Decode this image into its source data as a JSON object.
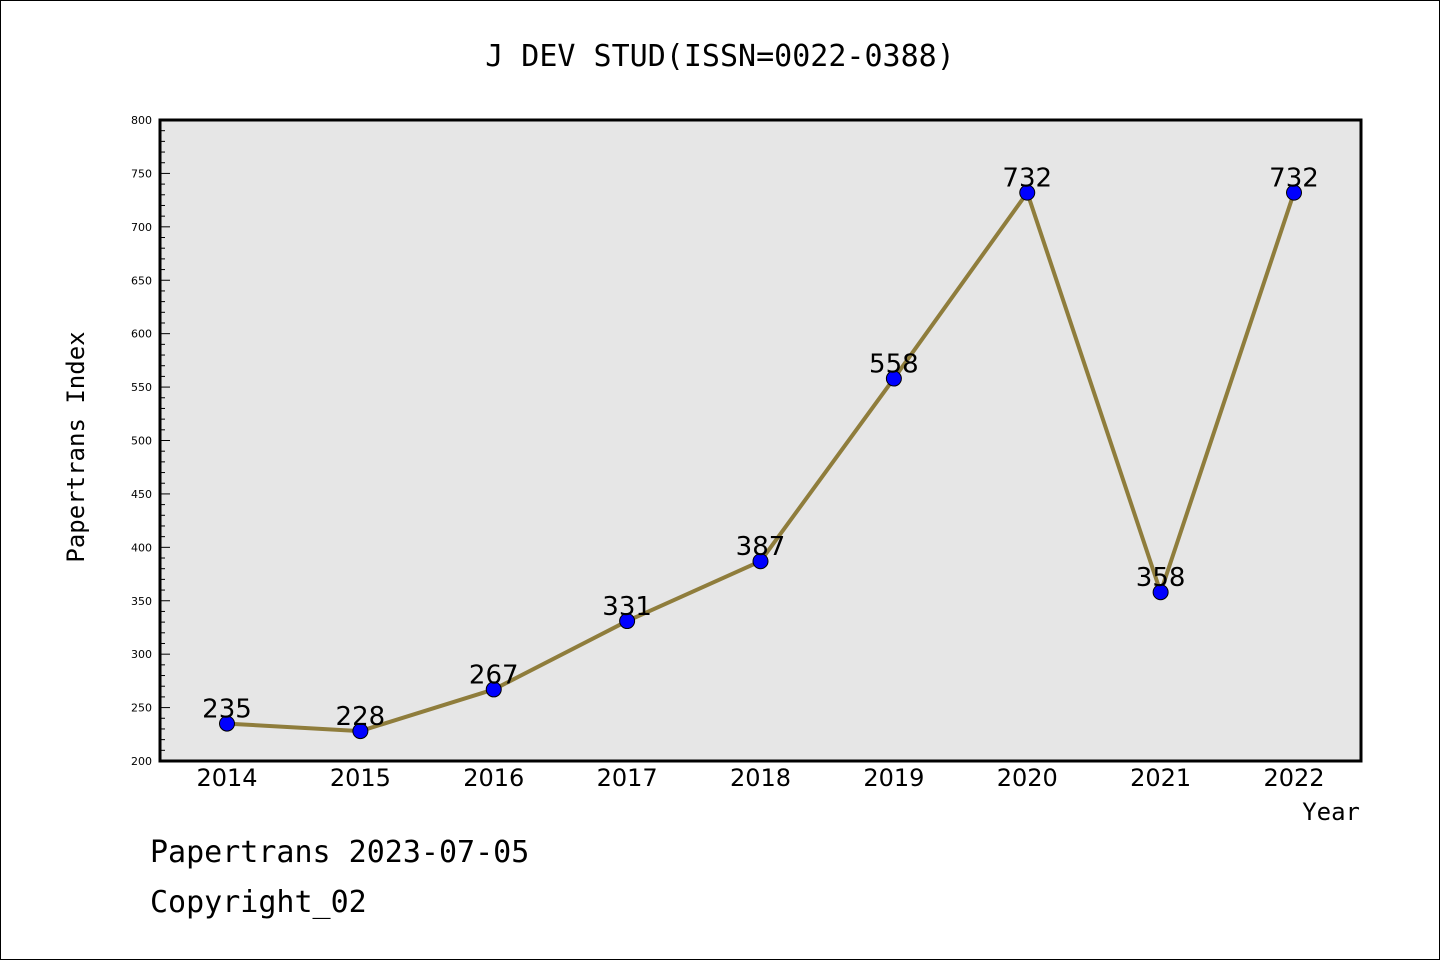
{
  "chart_data": {
    "type": "line",
    "title": "J DEV STUD(ISSN=0022-0388)",
    "xlabel": "Year",
    "ylabel": "Papertrans Index",
    "categories": [
      "2014",
      "2015",
      "2016",
      "2017",
      "2018",
      "2019",
      "2020",
      "2021",
      "2022"
    ],
    "values": [
      235,
      228,
      267,
      331,
      387,
      558,
      732,
      358,
      732
    ],
    "data_labels": [
      "235",
      "228",
      "267",
      "331",
      "387",
      "558",
      "732",
      "358",
      "732"
    ],
    "ylim": [
      200,
      800
    ],
    "yticks": [
      "200",
      "250",
      "300",
      "350",
      "400",
      "450",
      "500",
      "550",
      "600",
      "650",
      "700",
      "750",
      "800"
    ],
    "grid": false,
    "colors": {
      "line": "#8f7d3c",
      "marker": "#0000ff",
      "plot_background": "#e6e6e6",
      "axis": "#000000"
    }
  },
  "footer": {
    "date_line": "Papertrans 2023-07-05",
    "copyright": "Copyright_02"
  }
}
